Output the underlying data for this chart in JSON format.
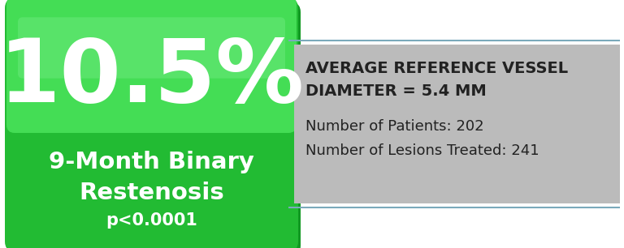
{
  "big_number": "10.5%",
  "subtitle_line1": "9-Month Binary",
  "subtitle_line2": "Restenosis",
  "subtitle_line3": "p<0.0001",
  "right_title_line1": "AVERAGE REFERENCE VESSEL",
  "right_title_line2": "DIAMETER = 5.4 MM",
  "right_stat1": "Number of Patients: 202",
  "right_stat2": "Number of Lesions Treated: 241",
  "green_upper_color": "#44dd55",
  "green_lower_color": "#22bb33",
  "green_dark_edge": "#119922",
  "green_highlight": "#77ee88",
  "right_bg_color": "#bbbbbb",
  "border_line_color": "#7aaabb",
  "white": "#ffffff",
  "dark_text": "#222222",
  "fig_width": 7.68,
  "fig_height": 3.06
}
